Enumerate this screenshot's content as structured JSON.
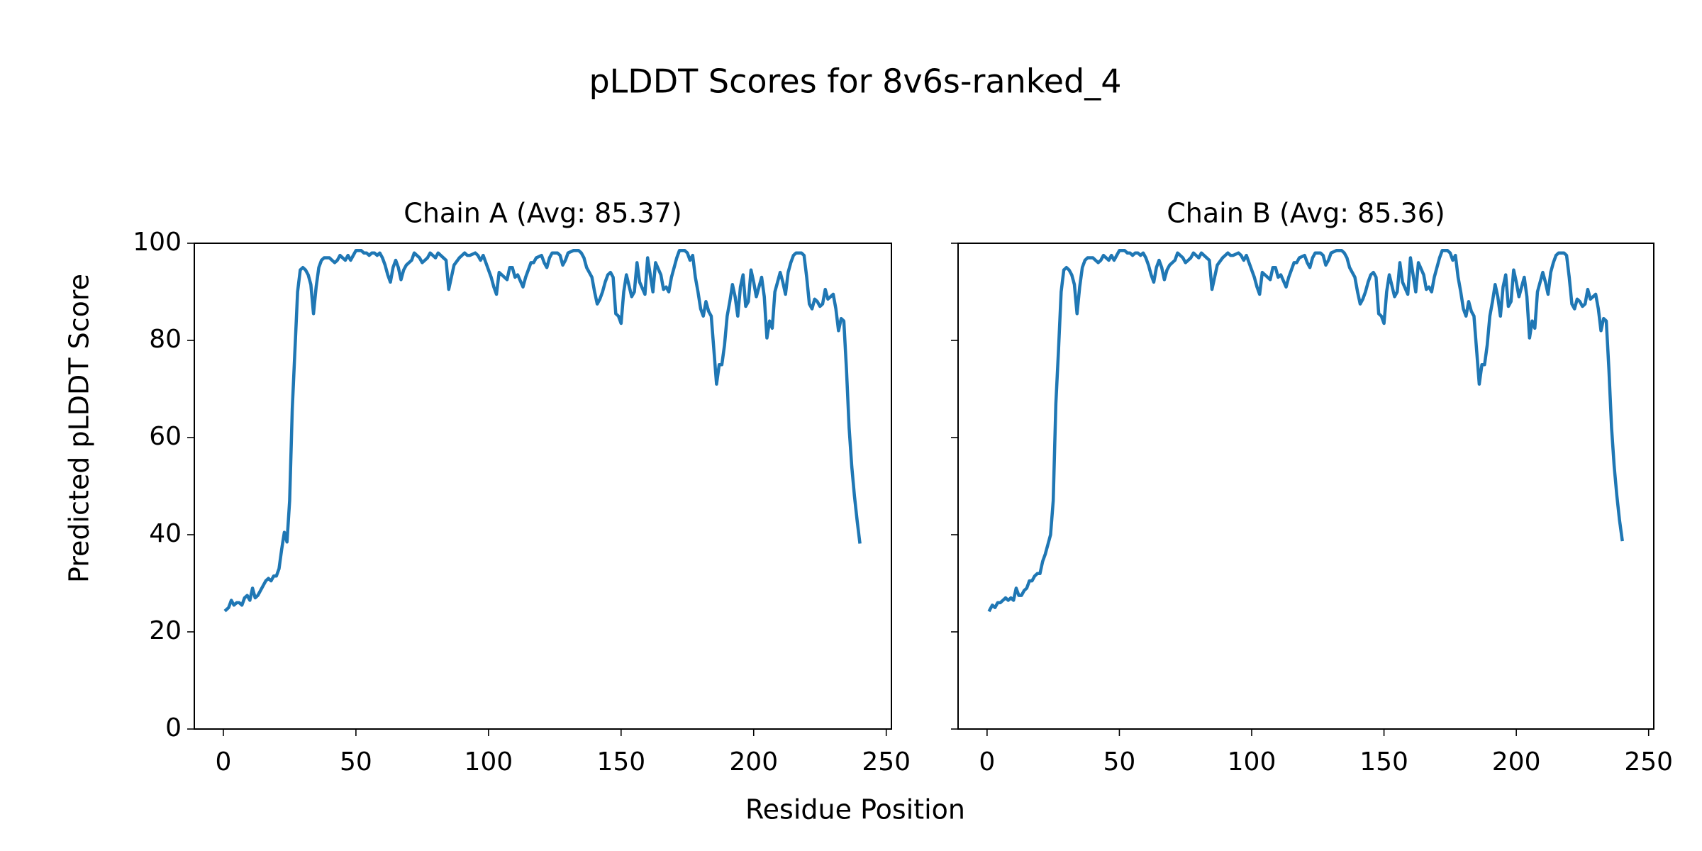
{
  "title": "pLDDT Scores for 8v6s-ranked_4",
  "x_label": "Residue Position",
  "y_label": "Predicted pLDDT Score",
  "chart_data": [
    {
      "type": "line",
      "title": "Chain A (Avg: 85.37)",
      "x": [
        1,
        2,
        3,
        4,
        5,
        6,
        7,
        8,
        9,
        10,
        11,
        12,
        13,
        14,
        15,
        16,
        17,
        18,
        19,
        20,
        21,
        22,
        23,
        24,
        25,
        26,
        27,
        28,
        29,
        30,
        31,
        32,
        33,
        34,
        35,
        36,
        37,
        38,
        39,
        40,
        41,
        42,
        43,
        44,
        45,
        46,
        47,
        48,
        49,
        50,
        51,
        52,
        53,
        54,
        55,
        56,
        57,
        58,
        59,
        60,
        61,
        62,
        63,
        64,
        65,
        66,
        67,
        68,
        69,
        70,
        71,
        72,
        73,
        74,
        75,
        76,
        77,
        78,
        79,
        80,
        81,
        82,
        83,
        84,
        85,
        86,
        87,
        89,
        90,
        91,
        92,
        93,
        95,
        96,
        97,
        98,
        99,
        101,
        102,
        103,
        104,
        105,
        107,
        108,
        109,
        110,
        111,
        113,
        114,
        115,
        116,
        117,
        118,
        120,
        121,
        122,
        123,
        124,
        126,
        127,
        128,
        129,
        130,
        132,
        133,
        134,
        135,
        136,
        137,
        139,
        140,
        141,
        142,
        143,
        144,
        145,
        146,
        147,
        148,
        149,
        150,
        151,
        152,
        154,
        155,
        156,
        157,
        159,
        160,
        161,
        162,
        163,
        165,
        166,
        167,
        168,
        169,
        171,
        172,
        173,
        174,
        175,
        176,
        177,
        178,
        179,
        180,
        181,
        182,
        183,
        184,
        185,
        186,
        187,
        188,
        189,
        190,
        191,
        192,
        193,
        194,
        195,
        196,
        197,
        198,
        199,
        200,
        201,
        202,
        203,
        204,
        205,
        206,
        207,
        208,
        209,
        210,
        211,
        212,
        213,
        214,
        215,
        216,
        217,
        218,
        219,
        220,
        221,
        222,
        223,
        224,
        225,
        226,
        227,
        228,
        230,
        231,
        232,
        233,
        234,
        235,
        236,
        237,
        238,
        239,
        240
      ],
      "series": [
        {
          "color": "#1f77b4",
          "values": [
            24.5,
            25,
            26.5,
            25.5,
            26,
            26,
            25.5,
            27,
            27.5,
            26.5,
            29,
            27,
            27.5,
            28.5,
            29.5,
            30.5,
            31,
            30.5,
            31.5,
            31.5,
            33,
            37,
            40.5,
            38.5,
            47,
            66,
            78,
            90,
            94.5,
            95,
            94.5,
            93.5,
            91.5,
            85.5,
            91,
            95,
            96.5,
            97,
            97,
            97,
            96.5,
            96,
            96.5,
            97.5,
            97,
            96.5,
            97.5,
            96.5,
            97.5,
            98.5,
            98.5,
            98.5,
            98,
            98,
            97.5,
            98,
            98,
            97.5,
            98,
            97,
            95.5,
            93.5,
            92,
            95,
            96.5,
            95,
            92.5,
            94.5,
            95.5,
            96,
            96.5,
            98,
            97.5,
            97,
            96,
            96.5,
            97,
            98,
            97.5,
            97,
            98,
            97.5,
            97,
            96.5,
            90.5,
            93,
            95.5,
            97,
            97.5,
            98,
            97.5,
            97.5,
            98,
            97.5,
            96.5,
            97.5,
            96,
            93,
            91,
            89.5,
            94,
            93.5,
            92.5,
            95,
            95,
            93,
            93.5,
            91,
            93,
            94.5,
            96,
            96,
            97,
            97.5,
            96,
            95,
            97,
            98,
            98,
            97.5,
            95.5,
            96.5,
            98,
            98.5,
            98.5,
            98.5,
            98,
            97,
            95,
            93,
            90,
            87.5,
            88.5,
            90,
            92,
            93.5,
            94,
            93,
            85.5,
            85,
            83.5,
            90,
            93.5,
            89,
            90,
            96,
            92,
            89.5,
            97,
            93.5,
            90,
            96,
            93.5,
            90.5,
            91,
            90,
            93,
            97,
            98.5,
            98.5,
            98.5,
            98,
            96.5,
            97.5,
            93,
            90,
            86.5,
            85,
            88,
            86,
            85,
            78,
            71,
            75,
            75,
            79,
            85,
            88,
            91.5,
            89,
            85,
            91,
            93.5,
            87,
            88,
            94.5,
            92,
            89,
            91,
            93,
            89,
            80.5,
            84,
            82.5,
            90,
            92,
            94,
            92,
            89.5,
            94,
            96,
            97.5,
            98,
            98,
            98,
            97.5,
            93,
            87.5,
            86.5,
            88.5,
            88,
            87,
            87.5,
            90.5,
            88.5,
            89.5,
            86.5,
            82,
            84.5,
            84,
            74,
            62,
            54,
            48,
            43,
            38.5
          ]
        }
      ],
      "xlim": [
        -10.95,
        251.95
      ],
      "xticks": [
        0,
        50,
        100,
        150,
        200,
        250
      ],
      "ylim": [
        0,
        100
      ],
      "yticks": [
        0,
        20,
        40,
        60,
        80,
        100
      ]
    },
    {
      "type": "line",
      "title": "Chain B (Avg: 85.36)",
      "x": [
        1,
        2,
        3,
        4,
        5,
        6,
        7,
        8,
        9,
        10,
        11,
        12,
        13,
        14,
        15,
        16,
        17,
        18,
        19,
        20,
        21,
        22,
        23,
        24,
        25,
        26,
        27,
        28,
        29,
        30,
        31,
        32,
        33,
        34,
        35,
        36,
        37,
        38,
        39,
        40,
        41,
        42,
        43,
        44,
        45,
        46,
        47,
        48,
        49,
        50,
        51,
        52,
        53,
        54,
        55,
        56,
        57,
        58,
        59,
        60,
        61,
        62,
        63,
        64,
        65,
        66,
        67,
        68,
        69,
        70,
        71,
        72,
        73,
        74,
        75,
        76,
        77,
        78,
        79,
        80,
        81,
        82,
        83,
        84,
        85,
        86,
        87,
        89,
        90,
        91,
        92,
        93,
        95,
        96,
        97,
        98,
        99,
        101,
        102,
        103,
        104,
        105,
        107,
        108,
        109,
        110,
        111,
        113,
        114,
        115,
        116,
        117,
        118,
        120,
        121,
        122,
        123,
        124,
        126,
        127,
        128,
        129,
        130,
        132,
        133,
        134,
        135,
        136,
        137,
        139,
        140,
        141,
        142,
        143,
        144,
        145,
        146,
        147,
        148,
        149,
        150,
        151,
        152,
        154,
        155,
        156,
        157,
        159,
        160,
        161,
        162,
        163,
        165,
        166,
        167,
        168,
        169,
        171,
        172,
        173,
        174,
        175,
        176,
        177,
        178,
        179,
        180,
        181,
        182,
        183,
        184,
        185,
        186,
        187,
        188,
        189,
        190,
        191,
        192,
        193,
        194,
        195,
        196,
        197,
        198,
        199,
        200,
        201,
        202,
        203,
        204,
        205,
        206,
        207,
        208,
        209,
        210,
        211,
        212,
        213,
        214,
        215,
        216,
        217,
        218,
        219,
        220,
        221,
        222,
        223,
        224,
        225,
        226,
        227,
        228,
        230,
        231,
        232,
        233,
        234,
        235,
        236,
        237,
        238,
        239,
        240
      ],
      "series": [
        {
          "color": "#1f77b4",
          "values": [
            24.5,
            25.5,
            25,
            26,
            26,
            26.5,
            27,
            26.5,
            27,
            26.5,
            29,
            27.5,
            27.5,
            28.5,
            29,
            30.5,
            30.5,
            31.5,
            32,
            32,
            34.5,
            36,
            38,
            40,
            47,
            67,
            78,
            90,
            94.5,
            95,
            94.5,
            93.5,
            91.5,
            85.5,
            91,
            95,
            96.5,
            97,
            97,
            97,
            96.5,
            96,
            96.5,
            97.5,
            97,
            96.5,
            97.5,
            96.5,
            97.5,
            98.5,
            98.5,
            98.5,
            98,
            98,
            97.5,
            98,
            98,
            97.5,
            98,
            97,
            95.5,
            93.5,
            92,
            95,
            96.5,
            95,
            92.5,
            94.5,
            95.5,
            96,
            96.5,
            98,
            97.5,
            97,
            96,
            96.5,
            97,
            98,
            97.5,
            97,
            98,
            97.5,
            97,
            96.5,
            90.5,
            93,
            95.5,
            97,
            97.5,
            98,
            97.5,
            97.5,
            98,
            97.5,
            96.5,
            97.5,
            96,
            93,
            91,
            89.5,
            94,
            93.5,
            92.5,
            95,
            95,
            93,
            93.5,
            91,
            93,
            94.5,
            96,
            96,
            97,
            97.5,
            96,
            95,
            97,
            98,
            98,
            97.5,
            95.5,
            96.5,
            98,
            98.5,
            98.5,
            98.5,
            98,
            97,
            95,
            93,
            90,
            87.5,
            88.5,
            90,
            92,
            93.5,
            94,
            93,
            85.5,
            85,
            83.5,
            90,
            93.5,
            89,
            90,
            96,
            92,
            89.5,
            97,
            93.5,
            90,
            96,
            93.5,
            90.5,
            91,
            90,
            93,
            97,
            98.5,
            98.5,
            98.5,
            98,
            96.5,
            97.5,
            93,
            90,
            86.5,
            85,
            88,
            86,
            85,
            78,
            71,
            75,
            75,
            79,
            85,
            88,
            91.5,
            89,
            85,
            91,
            93.5,
            87,
            88,
            94.5,
            92,
            89,
            91,
            93,
            89,
            80.5,
            84,
            82.5,
            90,
            92,
            94,
            92,
            89.5,
            94,
            96,
            97.5,
            98,
            98,
            98,
            97.5,
            93,
            87.5,
            86.5,
            88.5,
            88,
            87,
            87.5,
            90.5,
            88.5,
            89.5,
            86.5,
            82,
            84.5,
            84,
            74,
            62,
            54,
            48,
            43,
            39
          ]
        }
      ],
      "xlim": [
        -10.95,
        251.95
      ],
      "xticks": [
        0,
        50,
        100,
        150,
        200,
        250
      ],
      "ylim": [
        0,
        100
      ],
      "yticks": [
        0,
        20,
        40,
        60,
        80,
        100
      ]
    }
  ]
}
